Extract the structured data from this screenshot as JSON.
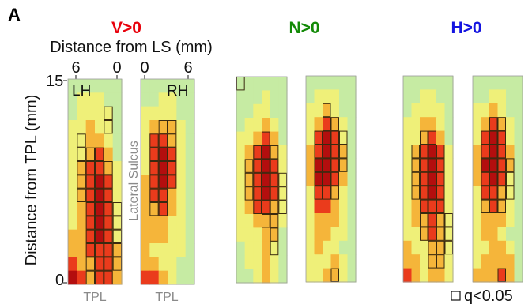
{
  "chart_data": {
    "type": "heatmap",
    "panel_label": "A",
    "top_axis_label": "Distance from LS (mm)",
    "top_ticks_left": [
      "6",
      "0"
    ],
    "top_ticks_right": [
      "0",
      "6"
    ],
    "y_axis_label": "Distance from TPL (mm)",
    "y_ticks": [
      "15",
      "0"
    ],
    "ylim": [
      0,
      15
    ],
    "hemisphere_labels": [
      "LH",
      "RH"
    ],
    "sulcus_label": "Lateral Sulcus",
    "bottom_label": "TPL",
    "legend_label": "q<0.05",
    "grid_size": [
      6,
      15
    ],
    "conditions": [
      {
        "title": "V>0",
        "color": "#e8000b"
      },
      {
        "title": "N>0",
        "color": "#138a07"
      },
      {
        "title": "H>0",
        "color": "#1414e0"
      }
    ],
    "maps": [
      {
        "condition": "V>0",
        "hemisphere": "LH",
        "rows": [
          [
            0,
            0,
            0,
            0,
            0,
            0
          ],
          [
            0,
            1,
            1,
            1,
            0,
            0
          ],
          [
            0,
            1,
            1,
            1,
            1,
            0
          ],
          [
            1,
            1,
            2,
            1,
            1,
            0
          ],
          [
            1,
            1,
            2,
            2,
            1,
            0
          ],
          [
            1,
            1,
            2,
            3,
            2,
            0
          ],
          [
            1,
            2,
            3,
            3,
            2,
            1
          ],
          [
            1,
            2,
            3,
            4,
            3,
            1
          ],
          [
            1,
            2,
            3,
            4,
            3,
            1
          ],
          [
            1,
            2,
            3,
            4,
            3,
            1
          ],
          [
            1,
            2,
            3,
            4,
            3,
            1
          ],
          [
            2,
            2,
            3,
            4,
            3,
            1
          ],
          [
            2,
            2,
            3,
            3,
            3,
            2
          ],
          [
            3,
            2,
            2,
            3,
            3,
            2
          ],
          [
            4,
            3,
            2,
            3,
            3,
            2
          ]
        ],
        "sig": [
          [],
          [],
          [
            4
          ],
          [
            4
          ],
          [
            1
          ],
          [
            1,
            2,
            3
          ],
          [
            1,
            2,
            3,
            4
          ],
          [
            1,
            2,
            3,
            4
          ],
          [
            1,
            2,
            3,
            4
          ],
          [
            2,
            3,
            4,
            5
          ],
          [
            2,
            3,
            4,
            5
          ],
          [
            2,
            3,
            4,
            5
          ],
          [
            2,
            3,
            4,
            5
          ],
          [
            2,
            3,
            4,
            5
          ],
          [
            2,
            3,
            4
          ]
        ]
      },
      {
        "condition": "V>0",
        "hemisphere": "RH",
        "rows": [
          [
            0,
            0,
            0,
            0,
            0,
            0
          ],
          [
            0,
            0,
            1,
            1,
            0,
            0
          ],
          [
            1,
            1,
            1,
            1,
            0,
            0
          ],
          [
            1,
            2,
            2,
            2,
            1,
            0
          ],
          [
            1,
            3,
            3,
            2,
            1,
            0
          ],
          [
            1,
            3,
            4,
            3,
            1,
            0
          ],
          [
            1,
            3,
            4,
            3,
            1,
            0
          ],
          [
            2,
            3,
            4,
            3,
            1,
            0
          ],
          [
            2,
            3,
            3,
            2,
            1,
            0
          ],
          [
            2,
            2,
            3,
            2,
            1,
            0
          ],
          [
            2,
            2,
            2,
            1,
            1,
            0
          ],
          [
            2,
            2,
            2,
            1,
            1,
            0
          ],
          [
            2,
            1,
            1,
            1,
            1,
            0
          ],
          [
            2,
            2,
            1,
            1,
            0,
            0
          ],
          [
            3,
            3,
            2,
            1,
            0,
            0
          ]
        ],
        "sig": [
          [],
          [],
          [],
          [
            2,
            3
          ],
          [
            1,
            2,
            3
          ],
          [
            1,
            2,
            3
          ],
          [
            1,
            2,
            3
          ],
          [
            1,
            2,
            3
          ],
          [
            1,
            2
          ],
          [
            1,
            2
          ],
          [],
          [],
          [],
          [],
          []
        ]
      },
      {
        "condition": "N>0",
        "hemisphere": "LH",
        "rows": [
          [
            0,
            0,
            0,
            0,
            0,
            0
          ],
          [
            0,
            0,
            0,
            1,
            0,
            0
          ],
          [
            0,
            0,
            1,
            1,
            0,
            0
          ],
          [
            0,
            1,
            1,
            2,
            1,
            0
          ],
          [
            1,
            1,
            2,
            3,
            2,
            0
          ],
          [
            1,
            2,
            3,
            4,
            2,
            1
          ],
          [
            1,
            2,
            3,
            4,
            3,
            1
          ],
          [
            1,
            2,
            3,
            4,
            3,
            1
          ],
          [
            1,
            2,
            3,
            4,
            3,
            1
          ],
          [
            1,
            2,
            3,
            3,
            2,
            1
          ],
          [
            1,
            1,
            2,
            2,
            2,
            1
          ],
          [
            1,
            1,
            1,
            2,
            2,
            0
          ],
          [
            0,
            1,
            1,
            2,
            1,
            0
          ],
          [
            0,
            1,
            1,
            2,
            1,
            0
          ],
          [
            0,
            0,
            1,
            2,
            1,
            0
          ]
        ],
        "sig": [
          [
            0
          ],
          [],
          [],
          [],
          [
            3
          ],
          [
            2,
            3,
            4
          ],
          [
            1,
            2,
            3,
            4
          ],
          [
            1,
            2,
            3,
            4,
            5
          ],
          [
            1,
            2,
            3,
            4,
            5
          ],
          [
            2,
            3,
            4,
            5
          ],
          [
            3,
            4
          ],
          [
            4
          ],
          [
            4
          ],
          [],
          []
        ]
      },
      {
        "condition": "N>0",
        "hemisphere": "RH",
        "rows": [
          [
            0,
            0,
            0,
            0,
            0,
            0
          ],
          [
            0,
            1,
            1,
            1,
            0,
            0
          ],
          [
            1,
            1,
            2,
            1,
            0,
            0
          ],
          [
            1,
            2,
            3,
            2,
            1,
            0
          ],
          [
            1,
            3,
            4,
            3,
            1,
            0
          ],
          [
            2,
            3,
            4,
            3,
            2,
            0
          ],
          [
            2,
            4,
            4,
            3,
            2,
            0
          ],
          [
            2,
            4,
            4,
            3,
            2,
            0
          ],
          [
            1,
            3,
            3,
            2,
            1,
            0
          ],
          [
            1,
            3,
            3,
            2,
            1,
            0
          ],
          [
            1,
            2,
            2,
            2,
            1,
            0
          ],
          [
            1,
            2,
            2,
            1,
            1,
            0
          ],
          [
            1,
            2,
            1,
            1,
            0,
            0
          ],
          [
            1,
            1,
            1,
            2,
            1,
            0
          ],
          [
            1,
            1,
            2,
            2,
            1,
            0
          ]
        ],
        "sig": [
          [],
          [],
          [
            2
          ],
          [
            2,
            3
          ],
          [
            1,
            2,
            3,
            4
          ],
          [
            1,
            2,
            3,
            4
          ],
          [
            1,
            2,
            3,
            4
          ],
          [
            1,
            2,
            3
          ],
          [
            1,
            2,
            3
          ],
          [],
          [],
          [],
          [],
          [],
          [
            3
          ]
        ]
      },
      {
        "condition": "H>0",
        "hemisphere": "LH",
        "rows": [
          [
            0,
            0,
            0,
            0,
            0,
            0
          ],
          [
            0,
            0,
            1,
            1,
            0,
            0
          ],
          [
            0,
            1,
            1,
            1,
            1,
            0
          ],
          [
            1,
            1,
            2,
            2,
            1,
            0
          ],
          [
            1,
            1,
            2,
            3,
            2,
            0
          ],
          [
            1,
            2,
            3,
            4,
            3,
            1
          ],
          [
            1,
            2,
            3,
            4,
            3,
            1
          ],
          [
            1,
            2,
            3,
            4,
            3,
            1
          ],
          [
            1,
            2,
            3,
            4,
            3,
            1
          ],
          [
            1,
            2,
            3,
            3,
            3,
            1
          ],
          [
            1,
            2,
            2,
            3,
            2,
            1
          ],
          [
            1,
            1,
            2,
            3,
            2,
            1
          ],
          [
            2,
            1,
            1,
            2,
            2,
            1
          ],
          [
            2,
            2,
            1,
            2,
            2,
            1
          ],
          [
            3,
            2,
            1,
            2,
            2,
            1
          ]
        ],
        "sig": [
          [],
          [],
          [],
          [],
          [
            2,
            3
          ],
          [
            1,
            2,
            3,
            4
          ],
          [
            1,
            2,
            3,
            4
          ],
          [
            1,
            2,
            3,
            4
          ],
          [
            1,
            2,
            3,
            4
          ],
          [
            2,
            3,
            4
          ],
          [
            2,
            3,
            4,
            5
          ],
          [
            2,
            3,
            4,
            5
          ],
          [
            3,
            4,
            5
          ],
          [
            3,
            4
          ],
          []
        ]
      },
      {
        "condition": "H>0",
        "hemisphere": "RH",
        "rows": [
          [
            0,
            0,
            0,
            0,
            0,
            0
          ],
          [
            0,
            0,
            1,
            1,
            0,
            0
          ],
          [
            1,
            1,
            2,
            1,
            0,
            0
          ],
          [
            1,
            2,
            3,
            2,
            1,
            0
          ],
          [
            1,
            3,
            4,
            3,
            1,
            0
          ],
          [
            2,
            3,
            4,
            3,
            2,
            0
          ],
          [
            2,
            4,
            4,
            3,
            2,
            0
          ],
          [
            2,
            3,
            4,
            3,
            1,
            0
          ],
          [
            1,
            3,
            3,
            2,
            1,
            0
          ],
          [
            1,
            2,
            3,
            2,
            1,
            0
          ],
          [
            1,
            2,
            2,
            2,
            1,
            0
          ],
          [
            1,
            2,
            2,
            1,
            0,
            0
          ],
          [
            1,
            1,
            2,
            2,
            1,
            0
          ],
          [
            1,
            2,
            2,
            2,
            2,
            0
          ],
          [
            2,
            2,
            2,
            3,
            2,
            0
          ]
        ],
        "sig": [
          [],
          [],
          [],
          [
            2,
            3
          ],
          [
            1,
            2,
            3
          ],
          [
            1,
            2,
            3
          ],
          [
            1,
            2,
            3,
            4
          ],
          [
            1,
            2,
            3,
            4
          ],
          [
            1,
            2,
            3,
            4
          ],
          [
            1,
            2,
            3
          ],
          [],
          [],
          [],
          [],
          [
            3
          ]
        ]
      }
    ]
  }
}
